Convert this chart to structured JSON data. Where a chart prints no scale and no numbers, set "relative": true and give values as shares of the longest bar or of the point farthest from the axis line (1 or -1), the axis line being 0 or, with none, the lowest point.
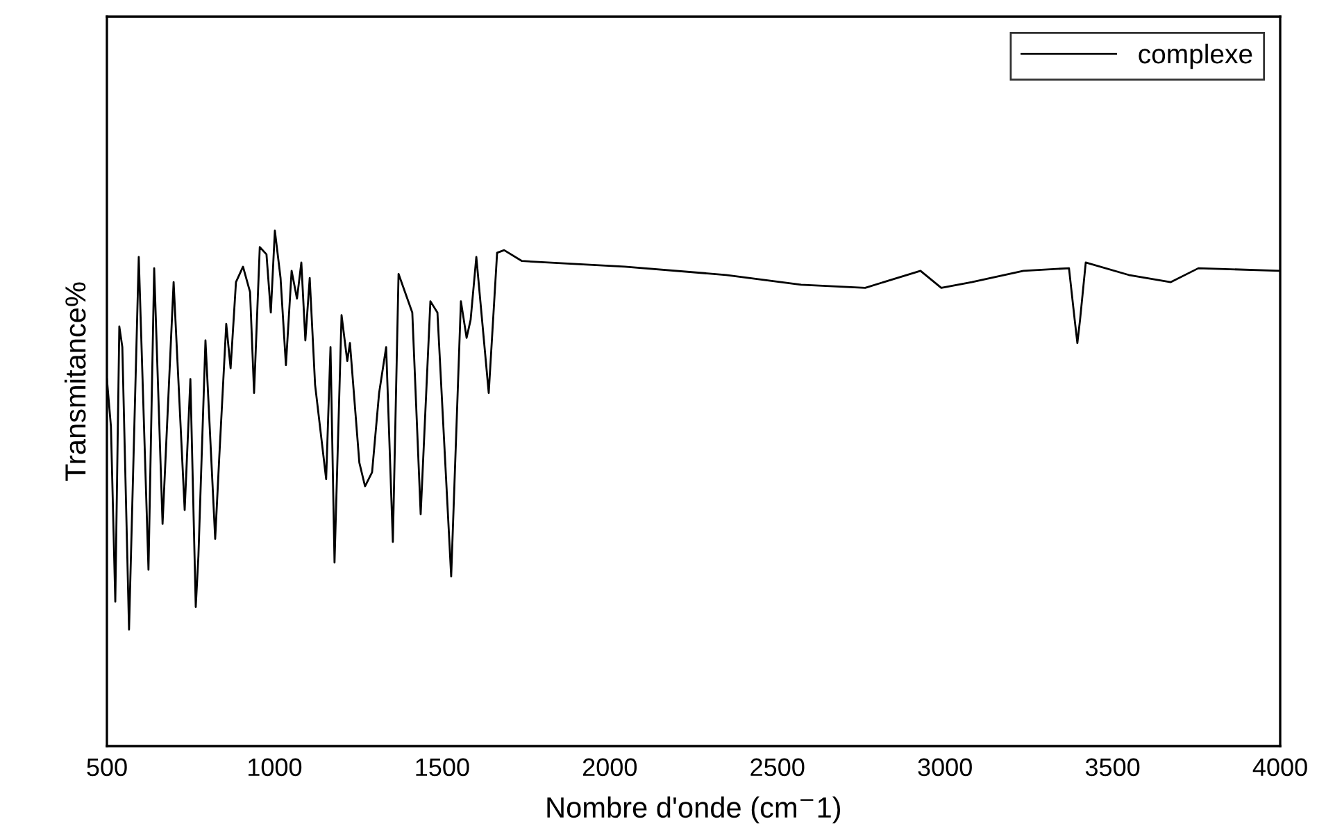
{
  "chart_data": {
    "type": "line",
    "xlabel": "Nombre d'onde (cm$^{−}$1)",
    "ylabel": "Transmitance%",
    "relative": true,
    "xlim": [
      500,
      4000
    ],
    "xticks": [
      500,
      1000,
      1500,
      2000,
      2500,
      3000,
      3500,
      4000
    ],
    "grid": false,
    "legend": "top right",
    "marker": "none",
    "line_style": "solid",
    "series": [
      {
        "name": "complexe",
        "color": "#000000",
        "x": [
          500,
          512,
          525,
          537,
          546,
          566,
          595,
          624,
          641,
          666,
          699,
          732,
          749,
          765,
          773,
          794,
          823,
          835,
          856,
          869,
          885,
          906,
          927,
          939,
          956,
          976,
          989,
          1001,
          1018,
          1034,
          1051,
          1067,
          1080,
          1092,
          1105,
          1121,
          1154,
          1167,
          1179,
          1200,
          1217,
          1225,
          1253,
          1270,
          1291,
          1312,
          1333,
          1353,
          1370,
          1411,
          1436,
          1465,
          1486,
          1527,
          1556,
          1573,
          1585,
          1602,
          1639,
          1664,
          1685,
          1738,
          2045,
          2347,
          2571,
          2762,
          2927,
          2989,
          3080,
          3234,
          3370,
          3387,
          3395,
          3403,
          3420,
          3548,
          3673,
          3756,
          4000
        ],
        "values": [
          0.712,
          0.62,
          0.28,
          0.814,
          0.774,
          0.226,
          0.949,
          0.342,
          0.927,
          0.431,
          0.9,
          0.458,
          0.712,
          0.27,
          0.369,
          0.787,
          0.402,
          0.558,
          0.819,
          0.733,
          0.9,
          0.93,
          0.881,
          0.685,
          0.968,
          0.954,
          0.841,
          1,
          0.908,
          0.739,
          0.922,
          0.868,
          0.938,
          0.787,
          0.908,
          0.701,
          0.518,
          0.774,
          0.356,
          0.836,
          0.747,
          0.782,
          0.55,
          0.504,
          0.531,
          0.685,
          0.774,
          0.396,
          0.916,
          0.841,
          0.45,
          0.863,
          0.841,
          0.329,
          0.863,
          0.792,
          0.827,
          0.949,
          0.685,
          0.957,
          0.962,
          0.941,
          0.93,
          0.914,
          0.895,
          0.889,
          0.922,
          0.889,
          0.9,
          0.922,
          0.927,
          0.827,
          0.782,
          0.827,
          0.938,
          0.914,
          0.9,
          0.927,
          0.922
        ]
      }
    ]
  }
}
